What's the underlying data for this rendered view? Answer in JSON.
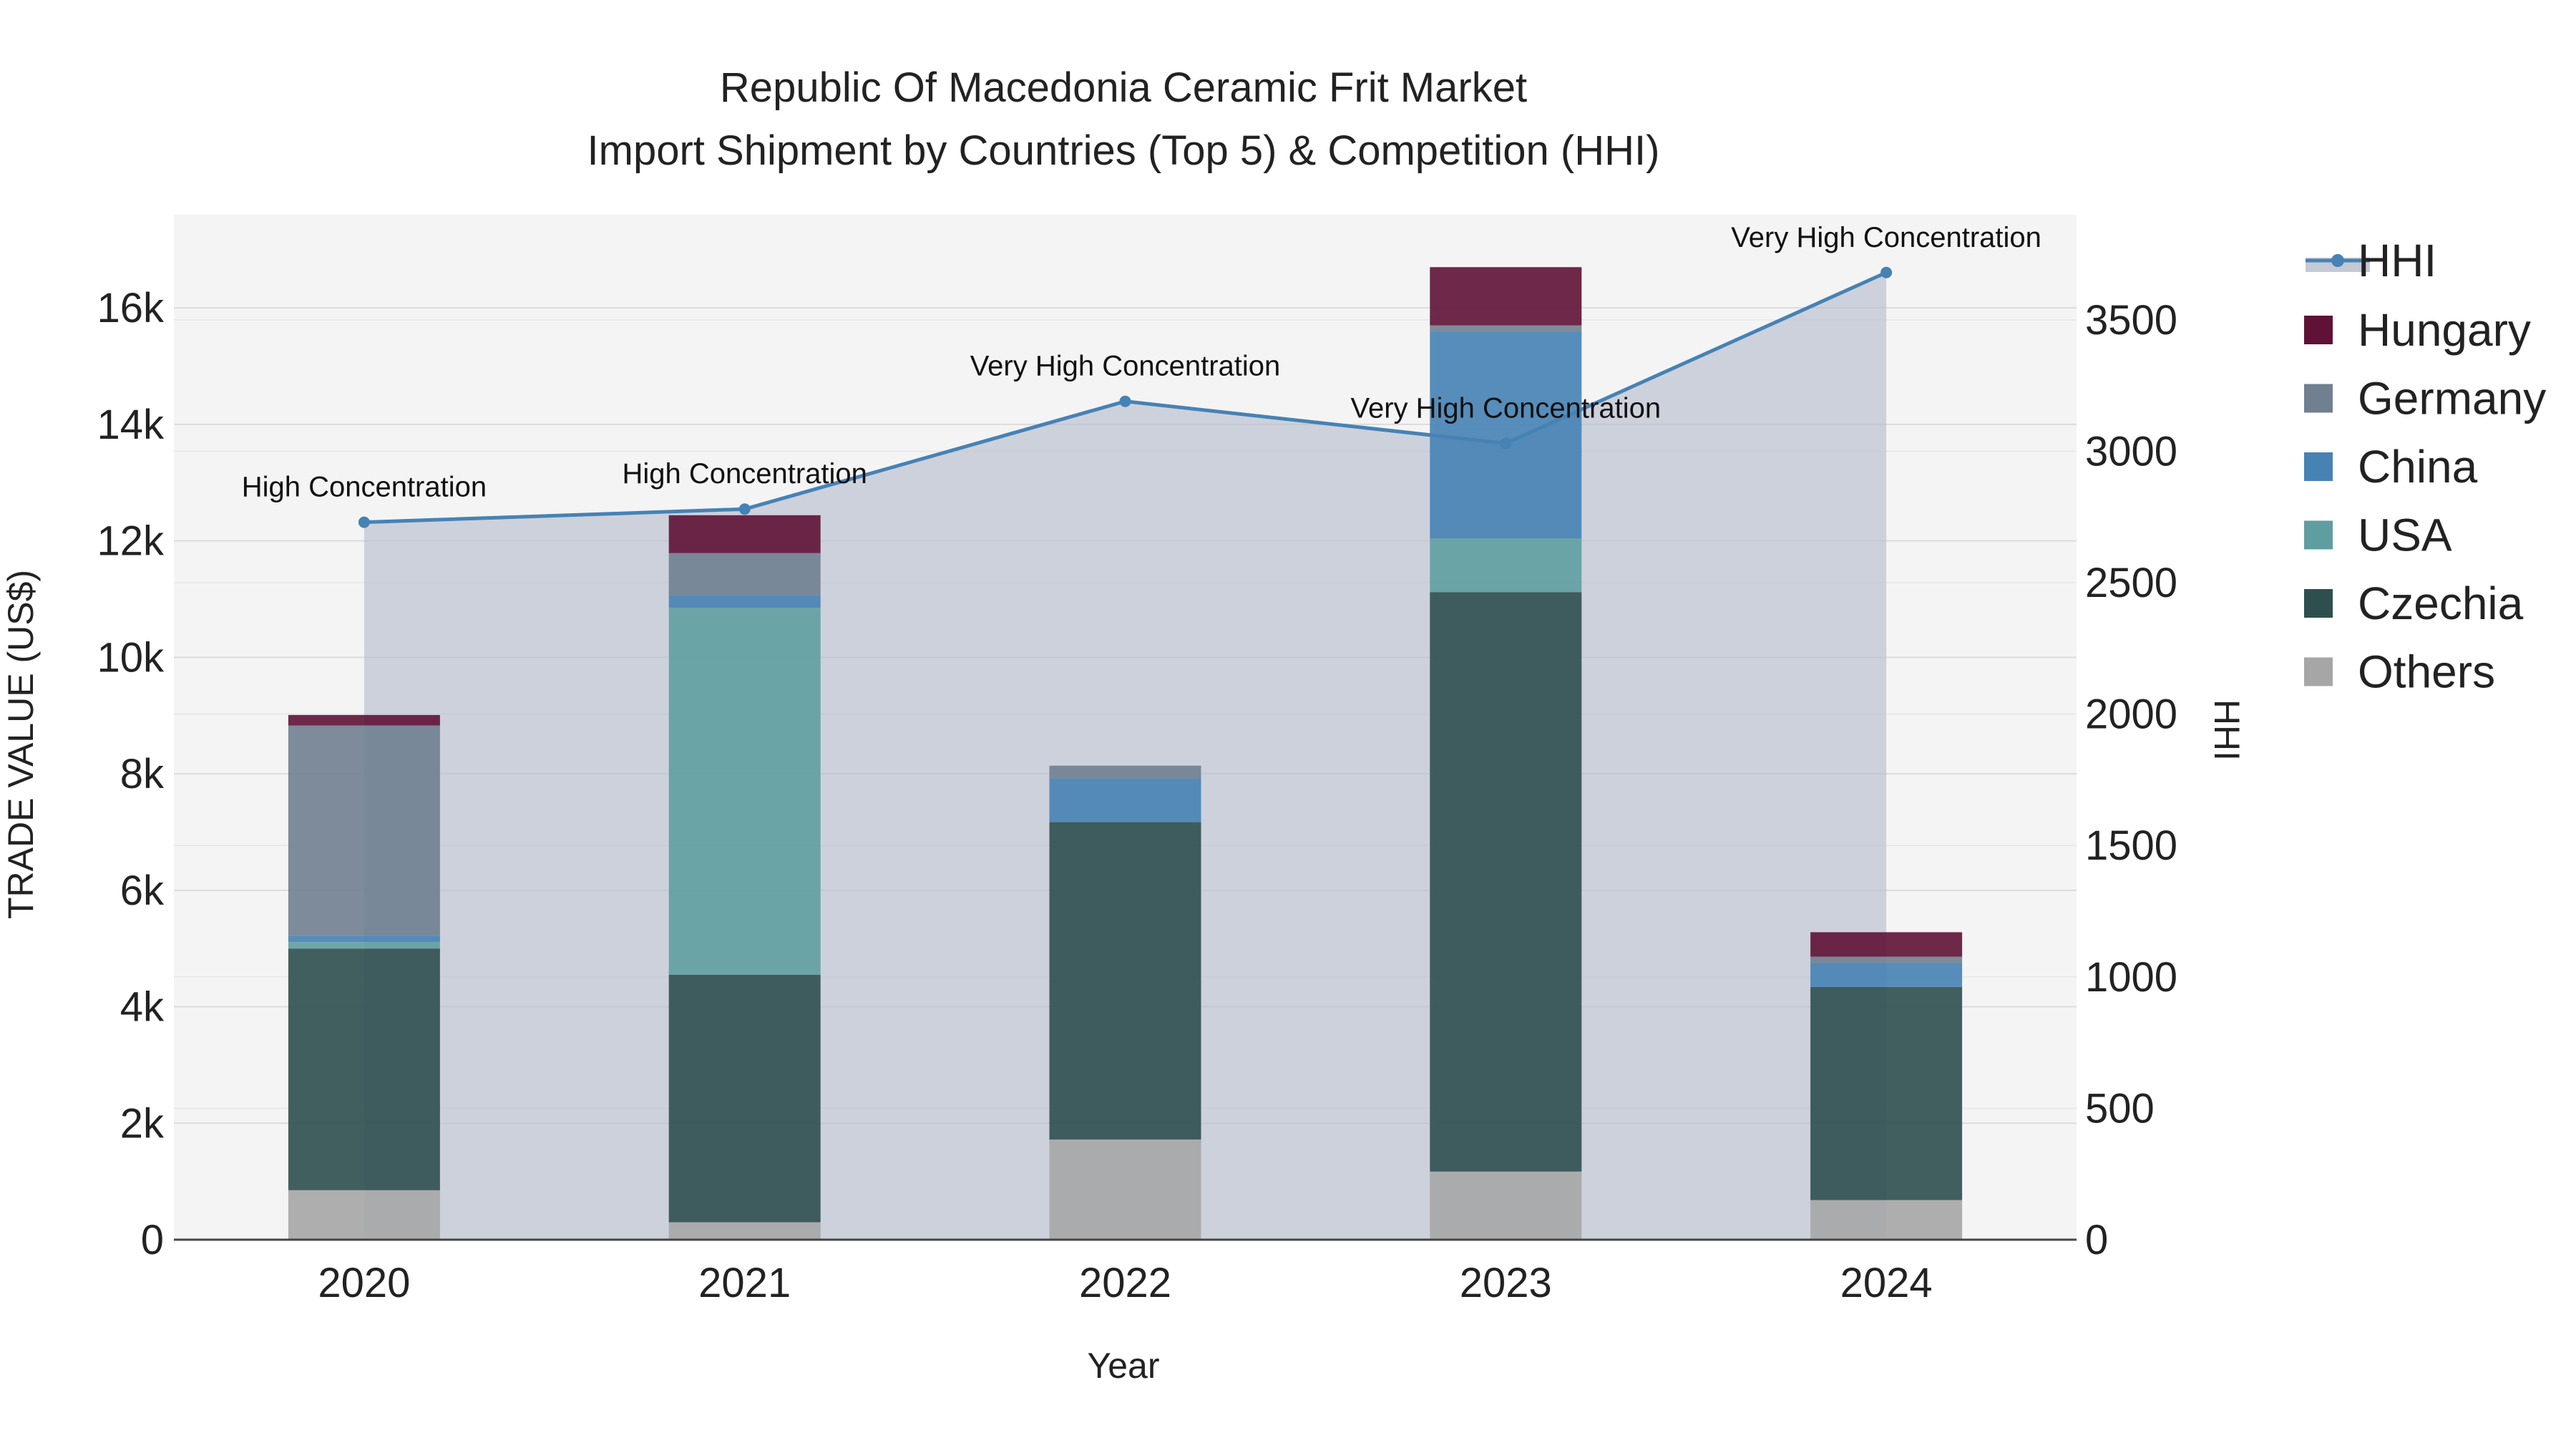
{
  "chart_data": {
    "type": "bar",
    "title": "Republic Of Macedonia Ceramic Frit Market",
    "subtitle": "Import Shipment by Countries (Top 5) & Competition (HHI)",
    "xlabel": "Year",
    "ylabel": "TRADE VALUE (US$)",
    "y2label": "HHI",
    "categories": [
      "2020",
      "2021",
      "2022",
      "2023",
      "2024"
    ],
    "ylim": [
      0,
      17600
    ],
    "y2lim": [
      0,
      3900
    ],
    "yticks": [
      0,
      2000,
      4000,
      6000,
      8000,
      10000,
      12000,
      14000,
      16000
    ],
    "ytick_labels": [
      "0",
      "2k",
      "4k",
      "6k",
      "8k",
      "10k",
      "12k",
      "14k",
      "16k"
    ],
    "y2ticks": [
      0,
      500,
      1000,
      1500,
      2000,
      2500,
      3000,
      3500
    ],
    "y2tick_labels": [
      "0",
      "500",
      "1000",
      "1500",
      "2000",
      "2500",
      "3000",
      "3500"
    ],
    "grid": true,
    "legend_position": "right",
    "series": [
      {
        "name": "Others",
        "color": "#a6a6a6",
        "values": [
          850,
          300,
          1720,
          1170,
          680
        ]
      },
      {
        "name": "Czechia",
        "color": "#2f4f4f",
        "values": [
          4150,
          4250,
          5450,
          9950,
          3660
        ]
      },
      {
        "name": "USA",
        "color": "#5f9ea0",
        "values": [
          110,
          6300,
          0,
          920,
          0
        ]
      },
      {
        "name": "China",
        "color": "#4682b4",
        "values": [
          110,
          220,
          750,
          3550,
          410
        ]
      },
      {
        "name": "Germany",
        "color": "#708090",
        "values": [
          3610,
          720,
          220,
          110,
          110
        ]
      },
      {
        "name": "Hungary",
        "color": "#5f1235",
        "values": [
          180,
          650,
          0,
          1000,
          420
        ]
      }
    ],
    "hhi": {
      "name": "HHI",
      "color": "#4682b4",
      "values": [
        2730,
        2780,
        3190,
        3030,
        3680
      ],
      "annotations": [
        "High Concentration",
        "High Concentration",
        "Very High Concentration",
        "Very High Concentration",
        "Very High Concentration"
      ]
    }
  }
}
